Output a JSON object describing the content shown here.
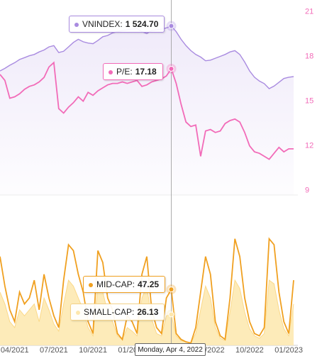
{
  "chart_data": [
    {
      "type": "line",
      "ylim": [
        8.7,
        21.8
      ],
      "yticks": [
        9,
        12,
        15,
        18,
        21
      ],
      "tick_color": "#f26bb8",
      "y2lim": [
        190,
        1730
      ],
      "series": [
        {
          "name": "VNINDEX",
          "color": "#a98be0",
          "axis": "y2",
          "area": true,
          "values": [
            1170,
            1190,
            1215,
            1235,
            1260,
            1275,
            1290,
            1300,
            1320,
            1335,
            1360,
            1370,
            1315,
            1325,
            1360,
            1395,
            1420,
            1400,
            1390,
            1385,
            1410,
            1440,
            1450,
            1470,
            1480,
            1490,
            1495,
            1500,
            1505,
            1480,
            1465,
            1490,
            1495,
            1500,
            1510,
            1524.7,
            1480,
            1420,
            1370,
            1330,
            1300,
            1280,
            1250,
            1255,
            1270,
            1285,
            1300,
            1320,
            1330,
            1300,
            1240,
            1170,
            1120,
            1090,
            1070,
            1030,
            1050,
            1080,
            1110,
            1120,
            1125
          ],
          "value_labels": [
            null,
            null,
            null,
            null,
            null,
            null,
            null,
            null,
            null,
            null,
            null,
            null,
            null,
            null,
            null,
            null,
            null,
            null,
            null,
            null,
            null,
            null,
            null,
            null,
            null,
            null,
            null,
            null,
            null,
            null,
            null,
            null,
            null,
            null,
            null,
            "1 524.70",
            null,
            null,
            null,
            null,
            null,
            null,
            null,
            null,
            null,
            null,
            null,
            null,
            null,
            null,
            null,
            null,
            null,
            null,
            null,
            null,
            null,
            null,
            null,
            null,
            null
          ]
        },
        {
          "name": "P/E",
          "color": "#f26bb8",
          "area": false,
          "values": [
            16.8,
            16.4,
            15.2,
            15.3,
            15.5,
            15.8,
            16.0,
            16.1,
            16.3,
            16.6,
            17.3,
            17.6,
            14.5,
            14.2,
            14.6,
            14.9,
            15.3,
            15.0,
            15.6,
            15.4,
            15.7,
            15.9,
            16.1,
            16.2,
            16.2,
            16.3,
            16.2,
            16.3,
            16.4,
            16.0,
            16.1,
            16.3,
            16.4,
            16.5,
            16.7,
            17.18,
            16.2,
            14.8,
            13.6,
            13.3,
            13.4,
            11.3,
            13.0,
            13.1,
            12.9,
            13.0,
            13.5,
            13.7,
            13.8,
            13.6,
            12.9,
            12.0,
            11.6,
            11.5,
            11.3,
            11.1,
            11.5,
            11.9,
            11.6,
            11.8,
            11.8
          ]
        }
      ]
    },
    {
      "type": "line",
      "ylim": [
        0,
        100
      ],
      "categories": [
        null,
        null,
        null,
        "04/2021",
        null,
        null,
        null,
        null,
        null,
        null,
        null,
        "07/2021",
        null,
        null,
        null,
        null,
        null,
        null,
        null,
        "10/2021",
        null,
        null,
        null,
        null,
        null,
        null,
        null,
        "01/2022",
        null,
        null,
        null,
        null,
        null,
        null,
        null,
        "04/2022",
        null,
        null,
        null,
        null,
        null,
        null,
        null,
        "07/2022",
        null,
        null,
        null,
        null,
        null,
        null,
        null,
        "10/2022",
        null,
        null,
        null,
        null,
        null,
        null,
        null,
        "01/2023",
        null
      ],
      "crosshair": "Monday, Apr 4, 2022",
      "series": [
        {
          "name": "MID-CAP",
          "color": "#f0a020",
          "area": false,
          "values": [
            75,
            50,
            30,
            20,
            45,
            35,
            40,
            55,
            30,
            60,
            40,
            25,
            15,
            55,
            85,
            80,
            60,
            45,
            20,
            10,
            80,
            70,
            40,
            30,
            10,
            5,
            25,
            20,
            10,
            60,
            75,
            30,
            15,
            10,
            40,
            47.25,
            10,
            5,
            3,
            2,
            15,
            45,
            75,
            60,
            20,
            8,
            5,
            40,
            90,
            75,
            40,
            20,
            10,
            8,
            15,
            90,
            85,
            45,
            20,
            10,
            55
          ]
        },
        {
          "name": "SMALL-CAP",
          "color": "#fde7ad",
          "area": true,
          "values": [
            45,
            35,
            20,
            15,
            30,
            25,
            30,
            35,
            20,
            40,
            30,
            18,
            12,
            35,
            55,
            50,
            40,
            30,
            15,
            8,
            50,
            45,
            28,
            20,
            8,
            5,
            15,
            12,
            8,
            40,
            50,
            22,
            10,
            8,
            25,
            26.13,
            8,
            4,
            3,
            2,
            10,
            30,
            50,
            40,
            15,
            6,
            4,
            28,
            55,
            48,
            28,
            14,
            8,
            6,
            10,
            55,
            52,
            30,
            14,
            8,
            35
          ]
        }
      ]
    }
  ]
}
